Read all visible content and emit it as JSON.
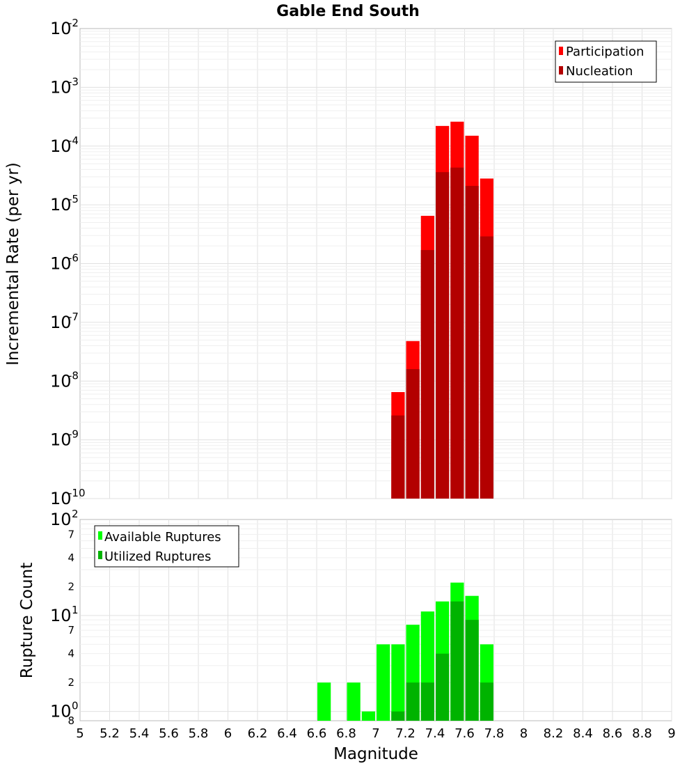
{
  "chart_data": [
    {
      "type": "bar",
      "title": "Gable End South",
      "xlabel": "",
      "ylabel": "Incremental Rate (per yr)",
      "yscale": "log",
      "ylim": [
        1e-10,
        0.01
      ],
      "xlim": [
        5,
        9
      ],
      "y_tick_labels": [
        {
          "base": "10",
          "exp": "-2"
        },
        {
          "base": "10",
          "exp": "-3"
        },
        {
          "base": "10",
          "exp": "-4"
        },
        {
          "base": "10",
          "exp": "-5"
        },
        {
          "base": "10",
          "exp": "-6"
        },
        {
          "base": "10",
          "exp": "-7"
        },
        {
          "base": "10",
          "exp": "-8"
        },
        {
          "base": "10",
          "exp": "-9"
        },
        {
          "base": "10",
          "exp": "-10"
        }
      ],
      "x": [
        7.15,
        7.25,
        7.35,
        7.45,
        7.55,
        7.65,
        7.75
      ],
      "series": [
        {
          "name": "Participation",
          "color": "#ff0000",
          "values": [
            6.5e-09,
            4.8e-08,
            6.5e-06,
            0.00022,
            0.00026,
            0.00015,
            2.8e-05
          ]
        },
        {
          "name": "Nucleation",
          "color": "#b30000",
          "values": [
            2.6e-09,
            1.6e-08,
            1.7e-06,
            3.6e-05,
            4.3e-05,
            2.1e-05,
            2.9e-06
          ]
        }
      ],
      "legend": "top-right",
      "grid": true
    },
    {
      "type": "bar",
      "title": "",
      "xlabel": "Magnitude",
      "ylabel": "Rupture Count",
      "yscale": "log",
      "ylim": [
        0.8,
        100
      ],
      "xlim": [
        5,
        9
      ],
      "x_tick_labels": [
        "5",
        "5.2",
        "5.4",
        "5.6",
        "5.8",
        "6",
        "6.2",
        "6.4",
        "6.6",
        "6.8",
        "7",
        "7.2",
        "7.4",
        "7.6",
        "7.8",
        "8",
        "8.2",
        "8.4",
        "8.6",
        "8.8",
        "9"
      ],
      "y_tick_labels": [
        {
          "base": "10",
          "exp": "2"
        },
        {
          "base": "10",
          "exp": "1"
        },
        {
          "base": "10",
          "exp": "0"
        }
      ],
      "y_minor_labels": [
        "7",
        "4",
        "2",
        "7",
        "4",
        "2",
        "8"
      ],
      "x": [
        6.65,
        6.85,
        6.95,
        7.05,
        7.15,
        7.25,
        7.35,
        7.45,
        7.55,
        7.65,
        7.75
      ],
      "series": [
        {
          "name": "Available Ruptures",
          "color": "#00ff00",
          "values": [
            2,
            2,
            1,
            5,
            5,
            8,
            11,
            14,
            22,
            16,
            5
          ]
        },
        {
          "name": "Utilized Ruptures",
          "color": "#00b300",
          "values": [
            0,
            0,
            0,
            0,
            1,
            2,
            2,
            4,
            14,
            9,
            2
          ]
        }
      ],
      "legend": "top-left",
      "grid": true
    }
  ]
}
